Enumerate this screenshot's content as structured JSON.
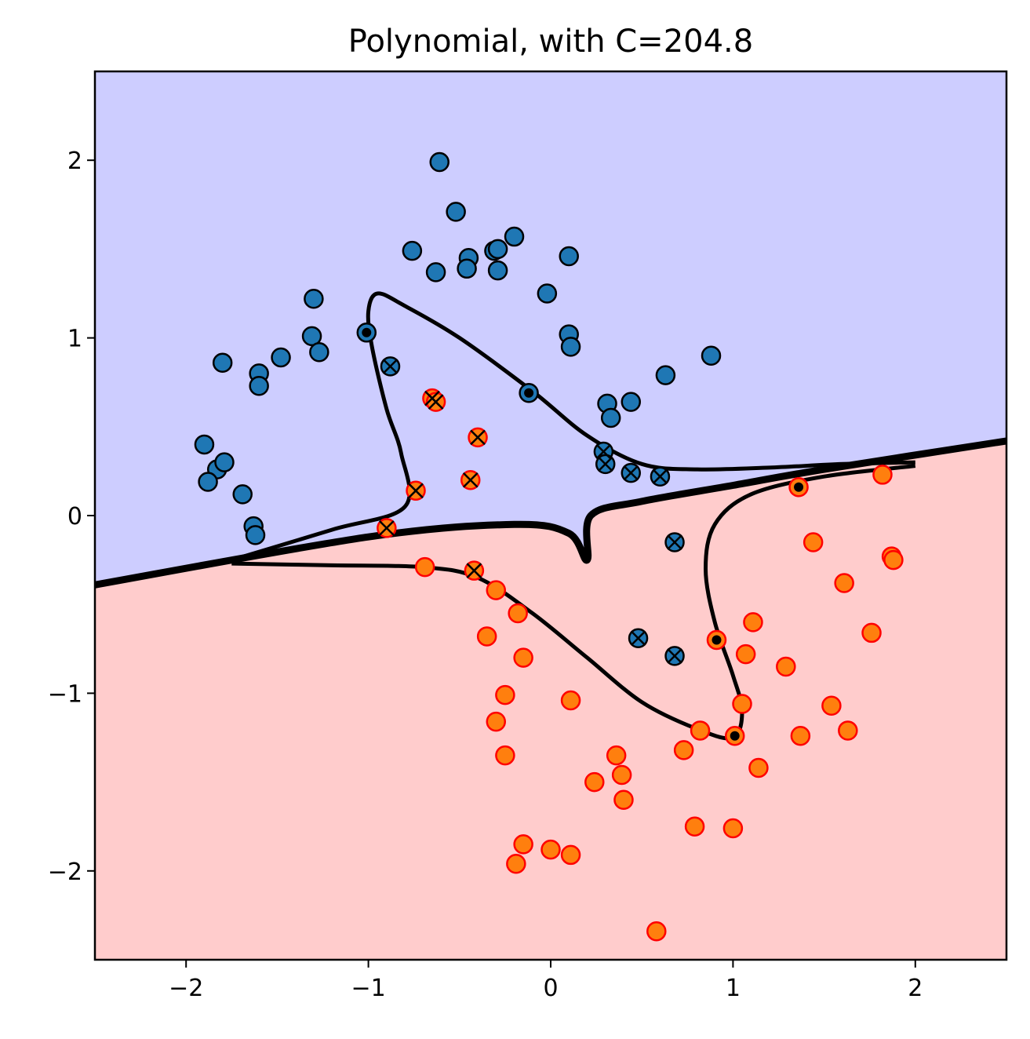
{
  "chart_data": {
    "type": "scatter",
    "title": "Polynomial, with C=204.8",
    "xlabel": "",
    "ylabel": "",
    "xlim": [
      -2.5,
      2.5
    ],
    "ylim": [
      -2.5,
      2.5
    ],
    "xticks": [
      -2,
      -1,
      0,
      1,
      2
    ],
    "yticks": [
      -2,
      -1,
      0,
      1,
      2
    ],
    "xtick_labels": [
      "−2",
      "−1",
      "0",
      "1",
      "2"
    ],
    "ytick_labels": [
      "−2",
      "−1",
      "0",
      "1",
      "2"
    ],
    "grid": false,
    "legend": "none",
    "colors": {
      "region_upper": "#cdcdff",
      "region_lower": "#ffcccc",
      "class_blue": "#1f77b4",
      "class_orange": "#ff7f0e",
      "edge_orange": "#ff0000",
      "edge_blue": "#000000",
      "boundary": "#000000"
    },
    "decision_boundary": [
      [
        -2.5,
        -0.39
      ],
      [
        -1.0,
        -0.12
      ],
      [
        -0.2,
        -0.05
      ],
      [
        0.1,
        -0.1
      ],
      [
        0.2,
        -0.25
      ],
      [
        0.22,
        0.0
      ],
      [
        0.5,
        0.08
      ],
      [
        1.0,
        0.17
      ],
      [
        1.5,
        0.26
      ],
      [
        2.5,
        0.42
      ]
    ],
    "margin_upper": [
      [
        -1.75,
        -0.25
      ],
      [
        -1.2,
        -0.08
      ],
      [
        -0.8,
        0.05
      ],
      [
        -0.82,
        0.35
      ],
      [
        -0.9,
        0.6
      ],
      [
        -0.98,
        0.95
      ],
      [
        -1.0,
        1.15
      ],
      [
        -0.95,
        1.25
      ],
      [
        -0.8,
        1.18
      ],
      [
        -0.5,
        1.0
      ],
      [
        -0.1,
        0.7
      ],
      [
        0.2,
        0.45
      ],
      [
        0.5,
        0.29
      ],
      [
        0.8,
        0.26
      ],
      [
        1.2,
        0.27
      ],
      [
        1.6,
        0.29
      ],
      [
        2.0,
        0.3
      ]
    ],
    "margin_lower": [
      [
        -1.75,
        -0.27
      ],
      [
        -1.2,
        -0.28
      ],
      [
        -0.7,
        -0.29
      ],
      [
        -0.4,
        -0.35
      ],
      [
        -0.1,
        -0.55
      ],
      [
        0.2,
        -0.8
      ],
      [
        0.5,
        -1.05
      ],
      [
        0.8,
        -1.2
      ],
      [
        1.0,
        -1.25
      ],
      [
        1.05,
        -1.1
      ],
      [
        1.0,
        -0.9
      ],
      [
        0.9,
        -0.6
      ],
      [
        0.85,
        -0.3
      ],
      [
        0.9,
        -0.05
      ],
      [
        1.1,
        0.12
      ],
      [
        1.5,
        0.22
      ],
      [
        2.0,
        0.28
      ]
    ],
    "series": [
      {
        "name": "",
        "color": "#1f77b4",
        "points": [
          [
            -0.61,
            1.99
          ],
          [
            -0.52,
            1.71
          ],
          [
            -0.2,
            1.57
          ],
          [
            -0.76,
            1.49
          ],
          [
            -0.31,
            1.49
          ],
          [
            -0.29,
            1.5
          ],
          [
            -0.45,
            1.45
          ],
          [
            -0.46,
            1.39
          ],
          [
            -0.29,
            1.38
          ],
          [
            -0.63,
            1.37
          ],
          [
            0.1,
            1.46
          ],
          [
            -0.02,
            1.25
          ],
          [
            -1.3,
            1.22
          ],
          [
            -1.31,
            1.01
          ],
          [
            -1.27,
            0.92
          ],
          [
            -1.48,
            0.89
          ],
          [
            -1.8,
            0.86
          ],
          [
            -1.6,
            0.8
          ],
          [
            -1.6,
            0.73
          ],
          [
            0.1,
            1.02
          ],
          [
            0.11,
            0.95
          ],
          [
            -1.01,
            1.03
          ],
          [
            0.88,
            0.9
          ],
          [
            0.63,
            0.79
          ],
          [
            -0.12,
            0.69
          ],
          [
            0.31,
            0.63
          ],
          [
            0.44,
            0.64
          ],
          [
            0.33,
            0.55
          ],
          [
            -1.9,
            0.4
          ],
          [
            -1.83,
            0.26
          ],
          [
            -1.79,
            0.3
          ],
          [
            -1.88,
            0.19
          ],
          [
            -1.69,
            0.12
          ],
          [
            -1.63,
            -0.06
          ],
          [
            -1.62,
            -0.11
          ],
          [
            -0.88,
            0.84
          ],
          [
            0.29,
            0.36
          ],
          [
            0.3,
            0.29
          ],
          [
            0.44,
            0.24
          ],
          [
            0.6,
            0.22
          ],
          [
            0.68,
            -0.15
          ],
          [
            0.48,
            -0.69
          ],
          [
            0.68,
            -0.79
          ]
        ]
      },
      {
        "name": "",
        "color": "#ff7f0e",
        "points": [
          [
            1.82,
            0.23
          ],
          [
            1.36,
            0.16
          ],
          [
            1.44,
            -0.15
          ],
          [
            1.87,
            -0.23
          ],
          [
            1.88,
            -0.25
          ],
          [
            1.61,
            -0.38
          ],
          [
            1.76,
            -0.66
          ],
          [
            1.11,
            -0.6
          ],
          [
            1.07,
            -0.78
          ],
          [
            1.29,
            -0.85
          ],
          [
            1.05,
            -1.06
          ],
          [
            1.54,
            -1.07
          ],
          [
            1.63,
            -1.21
          ],
          [
            1.37,
            -1.24
          ],
          [
            0.82,
            -1.21
          ],
          [
            1.01,
            -1.24
          ],
          [
            1.14,
            -1.42
          ],
          [
            0.73,
            -1.32
          ],
          [
            0.36,
            -1.35
          ],
          [
            0.39,
            -1.46
          ],
          [
            0.24,
            -1.5
          ],
          [
            0.4,
            -1.6
          ],
          [
            0.79,
            -1.75
          ],
          [
            1.0,
            -1.76
          ],
          [
            -0.15,
            -1.85
          ],
          [
            0.0,
            -1.88
          ],
          [
            0.11,
            -1.91
          ],
          [
            -0.19,
            -1.96
          ],
          [
            0.58,
            -2.34
          ],
          [
            0.11,
            -1.04
          ],
          [
            -0.25,
            -1.01
          ],
          [
            -0.3,
            -1.16
          ],
          [
            -0.25,
            -1.35
          ],
          [
            -0.15,
            -0.8
          ],
          [
            -0.18,
            -0.55
          ],
          [
            -0.35,
            -0.68
          ],
          [
            -0.3,
            -0.42
          ],
          [
            -0.69,
            -0.29
          ],
          [
            0.91,
            -0.7
          ],
          [
            -0.65,
            0.66
          ],
          [
            -0.63,
            0.64
          ],
          [
            -0.4,
            0.44
          ],
          [
            -0.74,
            0.14
          ],
          [
            -0.44,
            0.2
          ],
          [
            -0.9,
            -0.07
          ],
          [
            -0.42,
            -0.31
          ]
        ]
      }
    ],
    "support_vectors_x_marked": [
      [
        -0.88,
        0.84
      ],
      [
        0.29,
        0.36
      ],
      [
        0.3,
        0.29
      ],
      [
        0.44,
        0.24
      ],
      [
        0.6,
        0.22
      ],
      [
        0.68,
        -0.15
      ],
      [
        0.48,
        -0.69
      ],
      [
        0.68,
        -0.79
      ],
      [
        -0.65,
        0.66
      ],
      [
        -0.63,
        0.64
      ],
      [
        -0.4,
        0.44
      ],
      [
        -0.74,
        0.14
      ],
      [
        -0.44,
        0.2
      ],
      [
        -0.9,
        -0.07
      ],
      [
        -0.42,
        -0.31
      ]
    ],
    "support_vectors_dot_marked": [
      [
        -1.01,
        1.03
      ],
      [
        -0.12,
        0.69
      ],
      [
        1.36,
        0.16
      ],
      [
        0.91,
        -0.7
      ],
      [
        1.01,
        -1.24
      ]
    ]
  }
}
